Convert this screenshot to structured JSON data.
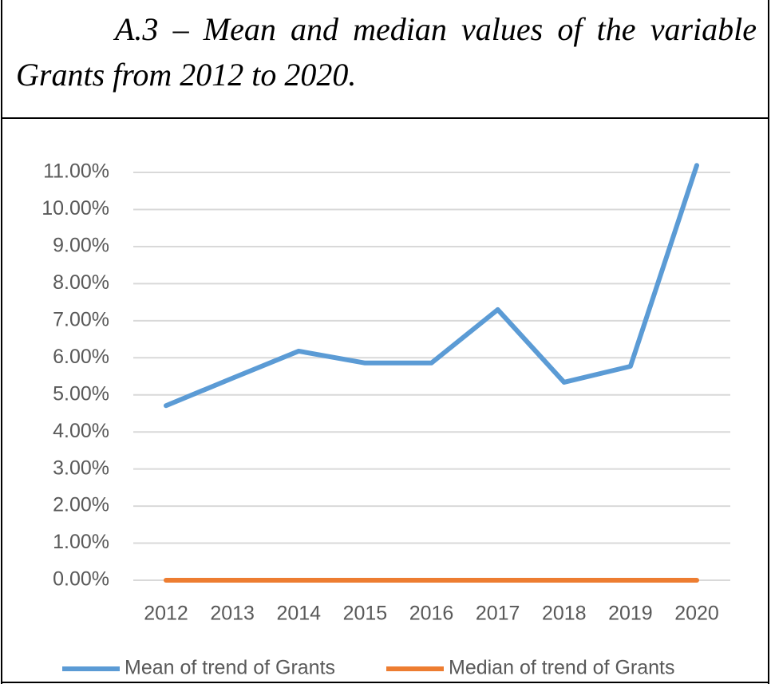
{
  "chart_data": {
    "type": "line",
    "title": "A.3 – Mean and median values of the variable Grants from 2012 to 2020.",
    "x": [
      "2012",
      "2013",
      "2014",
      "2015",
      "2016",
      "2017",
      "2018",
      "2019",
      "2020"
    ],
    "series": [
      {
        "name": "Mean of trend of Grants",
        "color": "#5b9bd5",
        "values": [
          4.71,
          5.45,
          6.18,
          5.86,
          5.86,
          7.3,
          5.34,
          5.77,
          11.19
        ]
      },
      {
        "name": "Median of trend of Grants",
        "color": "#ed7d31",
        "values": [
          0,
          0,
          0,
          0,
          0,
          0,
          0,
          0,
          0
        ]
      }
    ],
    "ylim": [
      0,
      11.2
    ],
    "yticks": [
      {
        "value": 0,
        "label": "0.00%"
      },
      {
        "value": 1,
        "label": "1.00%"
      },
      {
        "value": 2,
        "label": "2.00%"
      },
      {
        "value": 3,
        "label": "3.00%"
      },
      {
        "value": 4,
        "label": "4.00%"
      },
      {
        "value": 5,
        "label": "5.00%"
      },
      {
        "value": 6,
        "label": "6.00%"
      },
      {
        "value": 7,
        "label": "7.00%"
      },
      {
        "value": 8,
        "label": "8.00%"
      },
      {
        "value": 9,
        "label": "9.00%"
      },
      {
        "value": 10,
        "label": "10.00%"
      },
      {
        "value": 11,
        "label": "11.00%"
      }
    ],
    "grid": true,
    "legend": "bottom"
  }
}
